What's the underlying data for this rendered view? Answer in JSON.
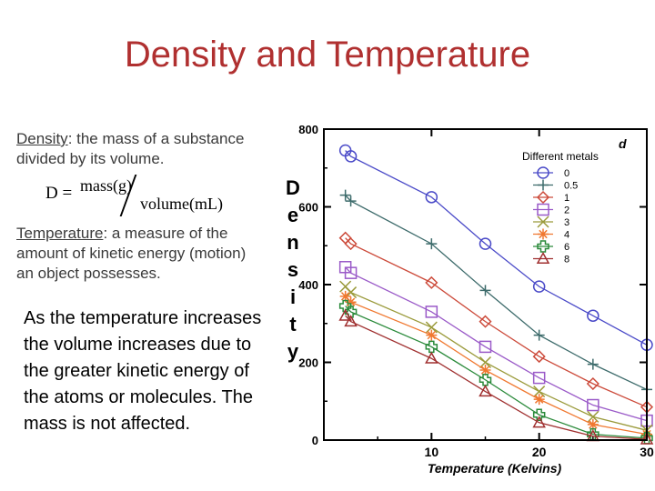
{
  "slide": {
    "title": "Density and Temperature",
    "density_term": "Density",
    "density_def": ": the mass of a substance divided by its volume.",
    "formula": {
      "lhs": "D =",
      "numerator": "mass(g)",
      "denominator": "volume(mL)"
    },
    "temperature_term": "Temperature",
    "temperature_def": ": a measure of the amount of kinetic energy (motion) an object possesses.",
    "note": "As the temperature increases the volume increases due to the greater kinetic energy of the atoms or molecules. The mass is not affected."
  },
  "chart_data": {
    "type": "line",
    "title": "",
    "xlabel": "Temperature (Kelvins)",
    "ylabel": "Density",
    "legend_title": "Different metals",
    "panel_label": "d",
    "xlim": [
      0,
      30
    ],
    "ylim": [
      0,
      800
    ],
    "xticks": [
      10,
      20,
      30
    ],
    "yticks": [
      0,
      200,
      400,
      600,
      800
    ],
    "ytick_labels": [
      "0",
      "200",
      "400",
      "600",
      "800"
    ],
    "legend_position": "top-right",
    "x": [
      2,
      2.5,
      10,
      15,
      20,
      25,
      30
    ],
    "series": [
      {
        "name": "0",
        "marker": "circle",
        "color": "#4a4ac8",
        "values": [
          745,
          730,
          625,
          505,
          395,
          320,
          245
        ]
      },
      {
        "name": "0.5",
        "marker": "plus",
        "color": "#3d6b6b",
        "values": [
          630,
          615,
          505,
          385,
          270,
          195,
          130
        ]
      },
      {
        "name": "1",
        "marker": "diamond",
        "color": "#cc4a3a",
        "values": [
          520,
          505,
          405,
          305,
          215,
          145,
          85
        ]
      },
      {
        "name": "2",
        "marker": "square",
        "color": "#9a5ac8",
        "values": [
          445,
          430,
          330,
          240,
          160,
          90,
          50
        ]
      },
      {
        "name": "3",
        "marker": "x",
        "color": "#9a9a3a",
        "values": [
          395,
          380,
          290,
          200,
          125,
          60,
          25
        ]
      },
      {
        "name": "4",
        "marker": "star",
        "color": "#f07830",
        "values": [
          370,
          355,
          270,
          180,
          105,
          40,
          15
        ]
      },
      {
        "name": "6",
        "marker": "cross",
        "color": "#2a8a3a",
        "values": [
          345,
          330,
          240,
          155,
          65,
          15,
          5
        ]
      },
      {
        "name": "8",
        "marker": "triangle",
        "color": "#a03030",
        "values": [
          320,
          305,
          210,
          125,
          45,
          10,
          2
        ]
      }
    ]
  }
}
